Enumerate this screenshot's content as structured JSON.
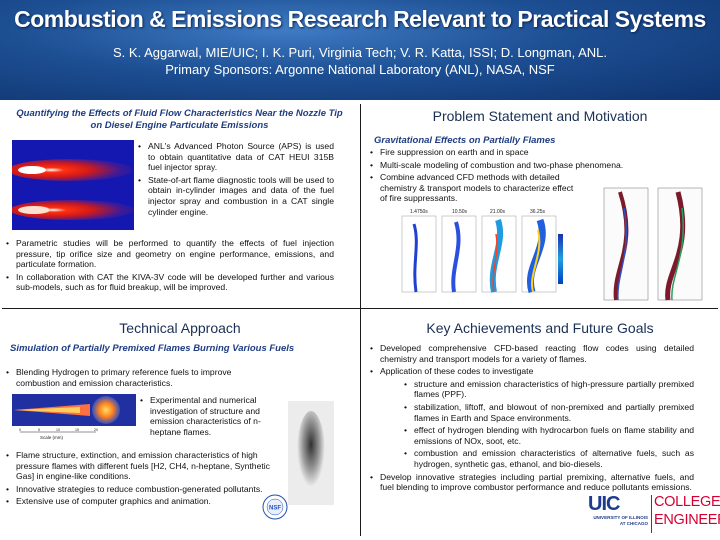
{
  "header": {
    "title": "Combustion & Emissions Research Relevant to Practical Systems",
    "authors": "S. K. Aggarwal, MIE/UIC; I. K. Puri, Virginia Tech; V. R. Katta, ISSI; D. Longman, ANL.",
    "sponsors": "Primary Sponsors: Argonne National Laboratory (ANL), NASA, NSF"
  },
  "q1": {
    "subtitle": "Quantifying the Effects of Fluid Flow Characteristics Near the Nozzle Tip on Diesel Engine Particulate Emissions",
    "right_bullets": [
      "ANL's Advanced Photon Source (APS) is used to obtain quantitative data of CAT HEUI 315B fuel injector spray.",
      "State-of-art flame diagnostic tools will be used to obtain in-cylinder images and data of the fuel injector spray and combustion in a CAT single cylinder engine."
    ],
    "bullets": [
      "Parametric studies will be performed to quantify the effects of fuel injection pressure, tip orifice size and geometry on engine performance, emissions, and particulate formation.",
      "In collaboration with CAT the KIVA-3V code will be developed further and various sub-models, such as for fluid breakup, will be improved."
    ]
  },
  "q2": {
    "title": "Problem Statement and Motivation",
    "subtitle": "Gravitational Effects on Partially Flames",
    "bullets": [
      "Fire suppression on earth and in space",
      "Multi-scale modeling of combustion and two-phase phenomena.",
      "Combine advanced CFD methods with detailed chemistry & transport models to characterize effect of fire suppressants."
    ],
    "panel_labels": [
      "1.4750s",
      "10.50s",
      "21.00s",
      "36.25s"
    ]
  },
  "q3": {
    "title": "Technical Approach",
    "subtitle": "Simulation of Partially Premixed Flames Burning Various Fuels",
    "bullet_top": "Blending Hydrogen to primary reference fuels to improve combustion and emission characteristics.",
    "bullet_mid": "Experimental and numerical investigation of structure and emission characteristics of n-heptane flames.",
    "bullets_bottom": [
      "Flame structure, extinction, and emission characteristics of high pressure flames with different fuels [H2, CH4, n-heptane, Synthetic Gas] in engine-like conditions.",
      "Innovative strategies to reduce combustion-generated pollutants.",
      "Extensive use of computer graphics and animation."
    ],
    "scale_label": "Scale (mm)",
    "scale_ticks": [
      "0",
      "5",
      "10",
      "15",
      "20"
    ]
  },
  "q4": {
    "title": "Key Achievements and Future Goals",
    "bullets": [
      "Developed comprehensive CFD-based reacting flow codes using detailed chemistry and transport models for a variety of flames.",
      "Application of these codes to investigate"
    ],
    "sub_bullets": [
      "structure and emission characteristics of high-pressure partially premixed flames (PPF).",
      "stabilization, liftoff, and blowout of non-premixed and partially premixed flames in Earth and Space environments.",
      "effect of hydrogen blending with hydrocarbon fuels on flame stability and emissions of NOx, soot, etc.",
      "combustion and emission characteristics of alternative fuels, such as hydrogen, synthetic gas, ethanol, and bio-diesels."
    ],
    "last_bullet": "Develop innovative strategies including partial premixing, alternative fuels, and fuel blending to improve combustor performance and reduce pollutants emissions."
  },
  "logo": {
    "uic": "UIC",
    "college": "COLLEGE OF",
    "engineering": "ENGINEERING",
    "univ": "UNIVERSITY OF ILLINOIS",
    "chicago": "AT CHICAGO",
    "nsf": "NSF"
  },
  "colors": {
    "header": "#1d4f93",
    "subtitle": "#1f3d82",
    "uic_blue": "#1d3c8f",
    "uic_red": "#d50032"
  }
}
